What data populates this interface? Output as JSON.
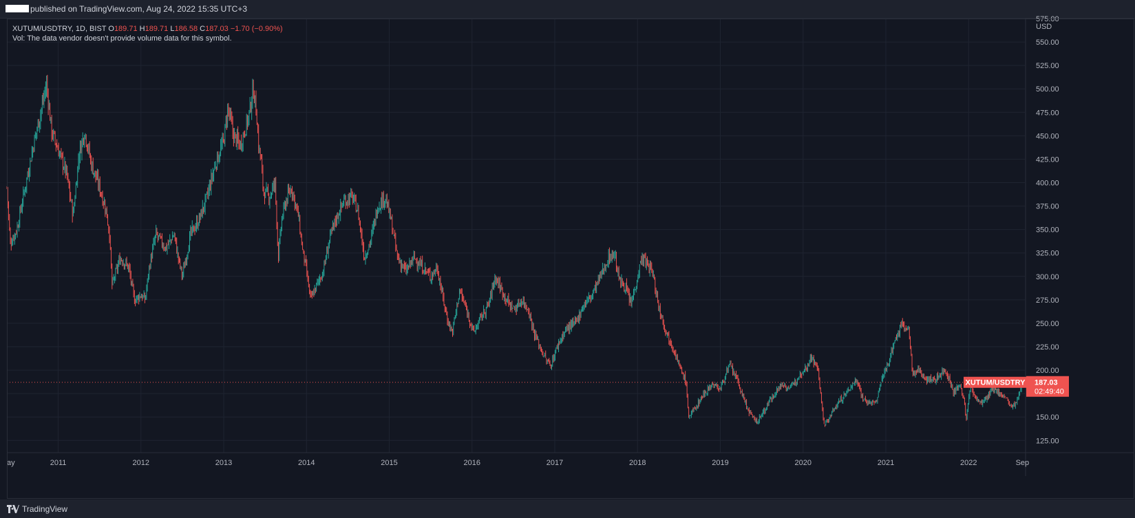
{
  "header": {
    "published_text": "published on TradingView.com, Aug 24, 2022 15:35 UTC+3"
  },
  "legend": {
    "symbol": "XUTUM/USDTRY, 1D, BIST",
    "o_label": "O",
    "o_value": "189.71",
    "h_label": "H",
    "h_value": "189.71",
    "l_label": "L",
    "l_value": "186.58",
    "c_label": "C",
    "c_value": "187.03",
    "change": "−1.70 (−0.90%)",
    "volume_text": "Vol: The data vendor doesn't provide volume data for this symbol."
  },
  "price_axis": {
    "currency": "USD",
    "last_price_tag": "187.03",
    "countdown": "02:49:40",
    "symbol_tag": "XUTUM/USDTRY"
  },
  "footer": {
    "brand": "TradingView",
    "logo_icon": "tradingview-logo-icon"
  },
  "colors": {
    "background": "#131722",
    "up": "#26a69a",
    "down": "#ef5350",
    "grid": "#1f2431",
    "text": "#b2b5be"
  },
  "chart_data": {
    "type": "candlestick",
    "symbol": "XUTUM/USDTRY",
    "interval": "1D",
    "exchange": "BIST",
    "y_unit": "USD",
    "ylim": [
      112,
      575
    ],
    "y_ticks": [
      125,
      150,
      175,
      200,
      225,
      250,
      275,
      300,
      325,
      350,
      375,
      400,
      425,
      450,
      475,
      500,
      525,
      550,
      575
    ],
    "x_range": [
      2010.38,
      2022.68
    ],
    "x_ticks": [
      {
        "label": "ay",
        "t": 2010.4
      },
      {
        "label": "2011",
        "t": 2011.0
      },
      {
        "label": "2012",
        "t": 2012.0
      },
      {
        "label": "2013",
        "t": 2013.0
      },
      {
        "label": "2014",
        "t": 2014.0
      },
      {
        "label": "2015",
        "t": 2015.0
      },
      {
        "label": "2016",
        "t": 2016.0
      },
      {
        "label": "2017",
        "t": 2017.0
      },
      {
        "label": "2018",
        "t": 2018.0
      },
      {
        "label": "2019",
        "t": 2019.0
      },
      {
        "label": "2020",
        "t": 2020.0
      },
      {
        "label": "2021",
        "t": 2021.0
      },
      {
        "label": "2022",
        "t": 2022.0
      },
      {
        "label": "Sep",
        "t": 2022.65
      }
    ],
    "last_close": 187.03,
    "price_path": [
      [
        2010.38,
        395
      ],
      [
        2010.42,
        335
      ],
      [
        2010.5,
        350
      ],
      [
        2010.6,
        395
      ],
      [
        2010.7,
        440
      ],
      [
        2010.8,
        480
      ],
      [
        2010.86,
        505
      ],
      [
        2010.92,
        455
      ],
      [
        2011.0,
        435
      ],
      [
        2011.1,
        410
      ],
      [
        2011.18,
        365
      ],
      [
        2011.25,
        430
      ],
      [
        2011.32,
        455
      ],
      [
        2011.4,
        420
      ],
      [
        2011.5,
        395
      ],
      [
        2011.58,
        370
      ],
      [
        2011.62,
        345
      ],
      [
        2011.65,
        290
      ],
      [
        2011.75,
        320
      ],
      [
        2011.85,
        310
      ],
      [
        2011.92,
        275
      ],
      [
        2012.0,
        280
      ],
      [
        2012.05,
        275
      ],
      [
        2012.1,
        310
      ],
      [
        2012.18,
        345
      ],
      [
        2012.3,
        330
      ],
      [
        2012.4,
        345
      ],
      [
        2012.45,
        320
      ],
      [
        2012.5,
        300
      ],
      [
        2012.6,
        345
      ],
      [
        2012.7,
        360
      ],
      [
        2012.8,
        385
      ],
      [
        2012.9,
        420
      ],
      [
        2013.0,
        445
      ],
      [
        2013.05,
        480
      ],
      [
        2013.12,
        450
      ],
      [
        2013.2,
        440
      ],
      [
        2013.3,
        470
      ],
      [
        2013.36,
        500
      ],
      [
        2013.4,
        470
      ],
      [
        2013.42,
        440
      ],
      [
        2013.45,
        425
      ],
      [
        2013.48,
        390
      ],
      [
        2013.55,
        385
      ],
      [
        2013.62,
        400
      ],
      [
        2013.66,
        320
      ],
      [
        2013.7,
        360
      ],
      [
        2013.75,
        380
      ],
      [
        2013.82,
        395
      ],
      [
        2013.9,
        365
      ],
      [
        2013.95,
        330
      ],
      [
        2014.0,
        305
      ],
      [
        2014.05,
        275
      ],
      [
        2014.12,
        290
      ],
      [
        2014.2,
        305
      ],
      [
        2014.28,
        340
      ],
      [
        2014.35,
        360
      ],
      [
        2014.45,
        380
      ],
      [
        2014.55,
        385
      ],
      [
        2014.62,
        370
      ],
      [
        2014.7,
        320
      ],
      [
        2014.78,
        340
      ],
      [
        2014.86,
        375
      ],
      [
        2014.95,
        385
      ],
      [
        2015.02,
        360
      ],
      [
        2015.1,
        320
      ],
      [
        2015.2,
        305
      ],
      [
        2015.3,
        320
      ],
      [
        2015.4,
        310
      ],
      [
        2015.5,
        300
      ],
      [
        2015.58,
        310
      ],
      [
        2015.62,
        290
      ],
      [
        2015.7,
        255
      ],
      [
        2015.76,
        240
      ],
      [
        2015.85,
        285
      ],
      [
        2015.95,
        260
      ],
      [
        2016.02,
        240
      ],
      [
        2016.1,
        255
      ],
      [
        2016.2,
        270
      ],
      [
        2016.28,
        300
      ],
      [
        2016.36,
        285
      ],
      [
        2016.45,
        270
      ],
      [
        2016.52,
        265
      ],
      [
        2016.6,
        275
      ],
      [
        2016.68,
        265
      ],
      [
        2016.75,
        240
      ],
      [
        2016.82,
        225
      ],
      [
        2016.9,
        210
      ],
      [
        2016.95,
        205
      ],
      [
        2017.05,
        230
      ],
      [
        2017.15,
        245
      ],
      [
        2017.25,
        250
      ],
      [
        2017.35,
        270
      ],
      [
        2017.45,
        280
      ],
      [
        2017.55,
        300
      ],
      [
        2017.65,
        320
      ],
      [
        2017.72,
        325
      ],
      [
        2017.78,
        295
      ],
      [
        2017.85,
        290
      ],
      [
        2017.92,
        270
      ],
      [
        2018.0,
        300
      ],
      [
        2018.05,
        320
      ],
      [
        2018.1,
        315
      ],
      [
        2018.18,
        305
      ],
      [
        2018.25,
        270
      ],
      [
        2018.35,
        240
      ],
      [
        2018.45,
        220
      ],
      [
        2018.52,
        200
      ],
      [
        2018.58,
        190
      ],
      [
        2018.62,
        150
      ],
      [
        2018.7,
        160
      ],
      [
        2018.8,
        175
      ],
      [
        2018.9,
        185
      ],
      [
        2019.0,
        180
      ],
      [
        2019.06,
        195
      ],
      [
        2019.12,
        205
      ],
      [
        2019.2,
        190
      ],
      [
        2019.3,
        165
      ],
      [
        2019.38,
        150
      ],
      [
        2019.45,
        145
      ],
      [
        2019.55,
        160
      ],
      [
        2019.65,
        175
      ],
      [
        2019.75,
        185
      ],
      [
        2019.85,
        180
      ],
      [
        2019.95,
        195
      ],
      [
        2020.05,
        205
      ],
      [
        2020.1,
        215
      ],
      [
        2020.18,
        200
      ],
      [
        2020.22,
        170
      ],
      [
        2020.25,
        140
      ],
      [
        2020.32,
        150
      ],
      [
        2020.42,
        165
      ],
      [
        2020.52,
        175
      ],
      [
        2020.6,
        185
      ],
      [
        2020.65,
        190
      ],
      [
        2020.72,
        170
      ],
      [
        2020.8,
        165
      ],
      [
        2020.88,
        165
      ],
      [
        2020.95,
        190
      ],
      [
        2021.02,
        205
      ],
      [
        2021.1,
        230
      ],
      [
        2021.16,
        240
      ],
      [
        2021.2,
        255
      ],
      [
        2021.24,
        240
      ],
      [
        2021.28,
        245
      ],
      [
        2021.32,
        195
      ],
      [
        2021.4,
        200
      ],
      [
        2021.5,
        190
      ],
      [
        2021.6,
        190
      ],
      [
        2021.7,
        200
      ],
      [
        2021.75,
        195
      ],
      [
        2021.82,
        175
      ],
      [
        2021.9,
        185
      ],
      [
        2021.95,
        165
      ],
      [
        2021.97,
        145
      ],
      [
        2022.02,
        185
      ],
      [
        2022.08,
        170
      ],
      [
        2022.15,
        165
      ],
      [
        2022.22,
        170
      ],
      [
        2022.3,
        180
      ],
      [
        2022.38,
        175
      ],
      [
        2022.45,
        170
      ],
      [
        2022.52,
        160
      ],
      [
        2022.58,
        165
      ],
      [
        2022.63,
        180
      ],
      [
        2022.66,
        187
      ]
    ]
  }
}
